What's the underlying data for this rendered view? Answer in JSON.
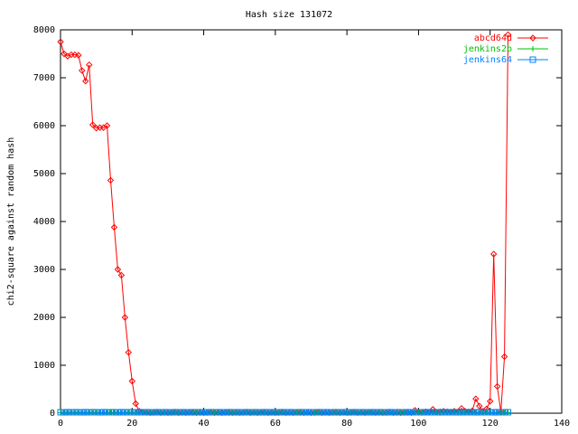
{
  "chart_data": {
    "type": "line",
    "title": "Hash size 131072",
    "y_label": "chi2-square against random hash",
    "x": [
      0,
      1,
      2,
      3,
      4,
      5,
      6,
      7,
      8,
      9,
      10,
      11,
      12,
      13,
      14,
      15,
      16,
      17,
      18,
      19,
      20,
      21,
      22,
      23,
      24,
      25,
      26,
      27,
      28,
      29,
      30,
      31,
      32,
      33,
      34,
      35,
      36,
      37,
      38,
      39,
      40,
      41,
      42,
      43,
      44,
      45,
      46,
      47,
      48,
      49,
      50,
      51,
      52,
      53,
      54,
      55,
      56,
      57,
      58,
      59,
      60,
      61,
      62,
      63,
      64,
      65,
      66,
      67,
      68,
      69,
      70,
      71,
      72,
      73,
      74,
      75,
      76,
      77,
      78,
      79,
      80,
      81,
      82,
      83,
      84,
      85,
      86,
      87,
      88,
      89,
      90,
      91,
      92,
      93,
      94,
      95,
      96,
      97,
      98,
      99,
      100,
      101,
      102,
      103,
      104,
      105,
      106,
      107,
      108,
      109,
      110,
      111,
      112,
      113,
      114,
      115,
      116,
      117,
      118,
      119,
      120,
      121,
      122,
      123,
      124,
      125
    ],
    "series": [
      {
        "name": "abcd64d",
        "color": "#ff0000",
        "marker": "diamond",
        "values": [
          7750,
          7500,
          7450,
          7480,
          7480,
          7470,
          7150,
          6930,
          7270,
          6020,
          5950,
          5960,
          5960,
          6000,
          4860,
          3880,
          3000,
          2880,
          2000,
          1270,
          670,
          200,
          40,
          20,
          15,
          10,
          15,
          20,
          10,
          15,
          10,
          15,
          20,
          10,
          15,
          10,
          20,
          15,
          10,
          15,
          10,
          15,
          20,
          10,
          15,
          10,
          20,
          15,
          10,
          15,
          10,
          15,
          20,
          10,
          15,
          10,
          20,
          15,
          10,
          15,
          10,
          15,
          20,
          10,
          15,
          10,
          20,
          15,
          10,
          15,
          10,
          15,
          20,
          10,
          15,
          10,
          20,
          15,
          10,
          15,
          10,
          15,
          20,
          10,
          15,
          10,
          20,
          15,
          10,
          15,
          10,
          15,
          20,
          10,
          15,
          10,
          20,
          15,
          10,
          60,
          20,
          20,
          30,
          20,
          80,
          20,
          30,
          40,
          30,
          20,
          40,
          30,
          100,
          40,
          30,
          50,
          300,
          150,
          40,
          90,
          250,
          3320,
          560,
          20,
          1180,
          7900
        ]
      },
      {
        "name": "jenkins2b",
        "color": "#00c000",
        "marker": "plus",
        "values": [
          10,
          12,
          9,
          11,
          10,
          12,
          10,
          9,
          11,
          10,
          10,
          12,
          9,
          11,
          10,
          12,
          10,
          9,
          11,
          10,
          10,
          12,
          9,
          11,
          10,
          12,
          10,
          9,
          11,
          10,
          10,
          12,
          9,
          11,
          10,
          12,
          10,
          9,
          11,
          10,
          10,
          12,
          9,
          11,
          10,
          12,
          10,
          9,
          11,
          10,
          10,
          12,
          9,
          11,
          10,
          12,
          10,
          9,
          11,
          10,
          10,
          12,
          9,
          11,
          10,
          12,
          10,
          9,
          11,
          10,
          10,
          12,
          9,
          11,
          10,
          12,
          10,
          9,
          11,
          10,
          10,
          12,
          9,
          11,
          10,
          12,
          10,
          9,
          11,
          10,
          10,
          12,
          9,
          11,
          10,
          12,
          10,
          9,
          11,
          10,
          10,
          12,
          9,
          11,
          10,
          12,
          10,
          9,
          11,
          10,
          10,
          12,
          9,
          11,
          10,
          12,
          10,
          9,
          11,
          10,
          10,
          12,
          9,
          11,
          10,
          12
        ]
      },
      {
        "name": "jenkins64",
        "color": "#0080ff",
        "marker": "square",
        "values": [
          20,
          18,
          22,
          19,
          21,
          20,
          18,
          22,
          19,
          21,
          20,
          18,
          22,
          19,
          21,
          20,
          18,
          22,
          19,
          21,
          20,
          18,
          22,
          19,
          21,
          20,
          18,
          22,
          19,
          21,
          20,
          18,
          22,
          19,
          21,
          20,
          18,
          22,
          19,
          21,
          20,
          18,
          22,
          19,
          21,
          20,
          18,
          22,
          19,
          21,
          20,
          18,
          22,
          19,
          21,
          20,
          18,
          22,
          19,
          21,
          20,
          18,
          22,
          19,
          21,
          20,
          18,
          22,
          19,
          21,
          20,
          18,
          22,
          19,
          21,
          20,
          18,
          22,
          19,
          21,
          20,
          18,
          22,
          19,
          21,
          20,
          18,
          22,
          19,
          21,
          20,
          18,
          22,
          19,
          21,
          20,
          18,
          22,
          19,
          21,
          20,
          18,
          22,
          19,
          21,
          20,
          18,
          22,
          19,
          21,
          20,
          18,
          22,
          19,
          21,
          20,
          18,
          22,
          19,
          21,
          20,
          18,
          22,
          19,
          21,
          20
        ]
      }
    ],
    "xlim": [
      0,
      140
    ],
    "xticks": [
      0,
      20,
      40,
      60,
      80,
      100,
      120,
      140
    ],
    "ylim": [
      0,
      8000
    ],
    "yticks": [
      0,
      1000,
      2000,
      3000,
      4000,
      5000,
      6000,
      7000,
      8000
    ],
    "grid": false,
    "legend": "top-right"
  }
}
